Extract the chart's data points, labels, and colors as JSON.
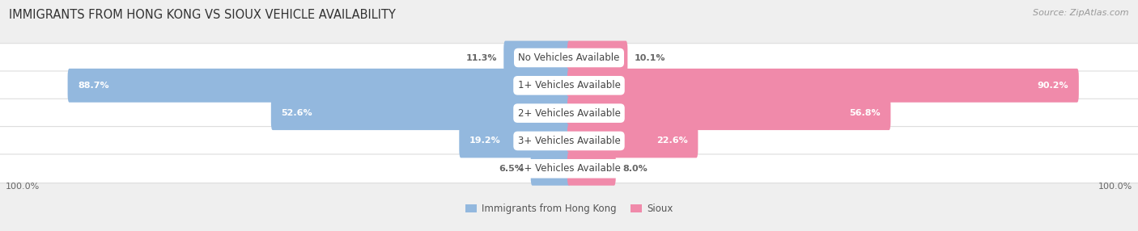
{
  "title": "IMMIGRANTS FROM HONG KONG VS SIOUX VEHICLE AVAILABILITY",
  "source": "Source: ZipAtlas.com",
  "categories": [
    "No Vehicles Available",
    "1+ Vehicles Available",
    "2+ Vehicles Available",
    "3+ Vehicles Available",
    "4+ Vehicles Available"
  ],
  "hk_values": [
    11.3,
    88.7,
    52.6,
    19.2,
    6.5
  ],
  "sioux_values": [
    10.1,
    90.2,
    56.8,
    22.6,
    8.0
  ],
  "hk_color": "#93b8de",
  "sioux_color": "#f08aaa",
  "hk_label": "Immigrants from Hong Kong",
  "sioux_label": "Sioux",
  "bg_color": "#efefef",
  "row_bg": "#ffffff",
  "row_sep": "#dddddd",
  "label_box_color": "#ffffff",
  "value_inside_color": "#ffffff",
  "value_outside_color": "#666666",
  "category_text_color": "#444444",
  "bar_height": 0.62,
  "max_val": 100.0,
  "title_fontsize": 10.5,
  "source_fontsize": 8,
  "value_fontsize": 8,
  "category_fontsize": 8.5,
  "legend_fontsize": 8.5,
  "axis_label_left": "100.0%",
  "axis_label_right": "100.0%"
}
